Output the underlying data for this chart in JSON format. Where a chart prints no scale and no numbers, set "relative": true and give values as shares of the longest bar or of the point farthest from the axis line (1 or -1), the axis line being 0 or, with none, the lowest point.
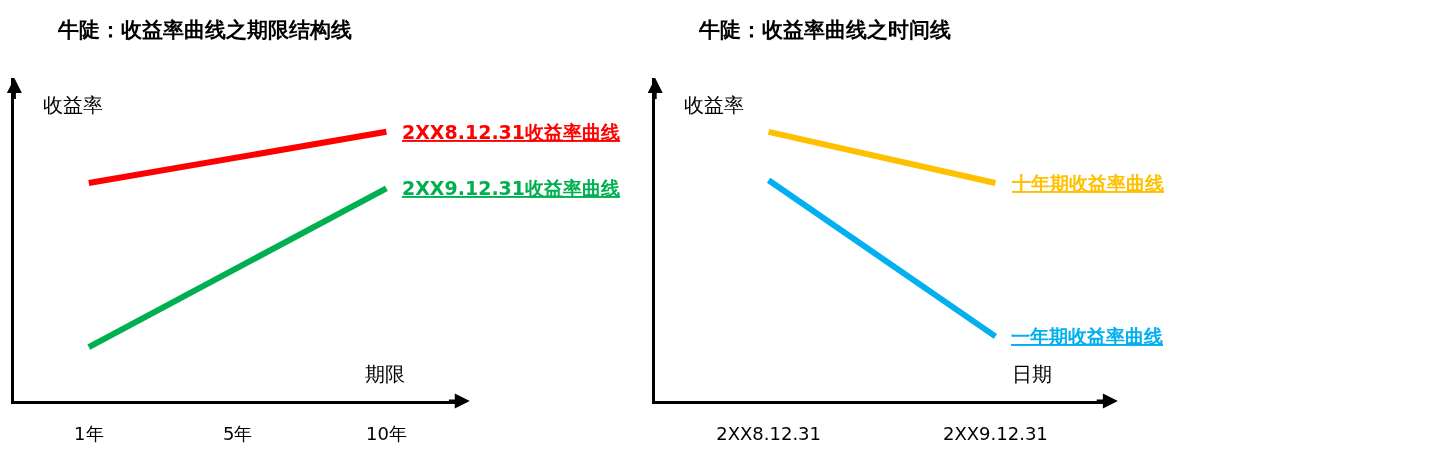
{
  "chart_data": [
    {
      "type": "line",
      "title": "牛陡：收益率曲线之期限结构线",
      "xlabel": "期限",
      "ylabel": "收益率",
      "relative": true,
      "legend": false,
      "categories": [
        "1年",
        "5年",
        "10年"
      ],
      "series": [
        {
          "name": "2XX8.12.31收益率曲线",
          "color": "#ff0000",
          "values": [
            0.81,
            null,
            1.0
          ]
        },
        {
          "name": "2XX9.12.31收益率曲线",
          "color": "#00b050",
          "values": [
            0.2,
            null,
            0.79
          ]
        }
      ]
    },
    {
      "type": "line",
      "title": "牛陡：收益率曲线之时间线",
      "xlabel": "日期",
      "ylabel": "收益率",
      "relative": true,
      "legend": false,
      "categories": [
        "2XX8.12.31",
        "2XX9.12.31"
      ],
      "series": [
        {
          "name": "十年期收益率曲线",
          "color": "#ffc000",
          "values": [
            1.0,
            0.81
          ]
        },
        {
          "name": "一年期收益率曲线",
          "color": "#00b0f0",
          "values": [
            0.82,
            0.24
          ]
        }
      ]
    }
  ]
}
